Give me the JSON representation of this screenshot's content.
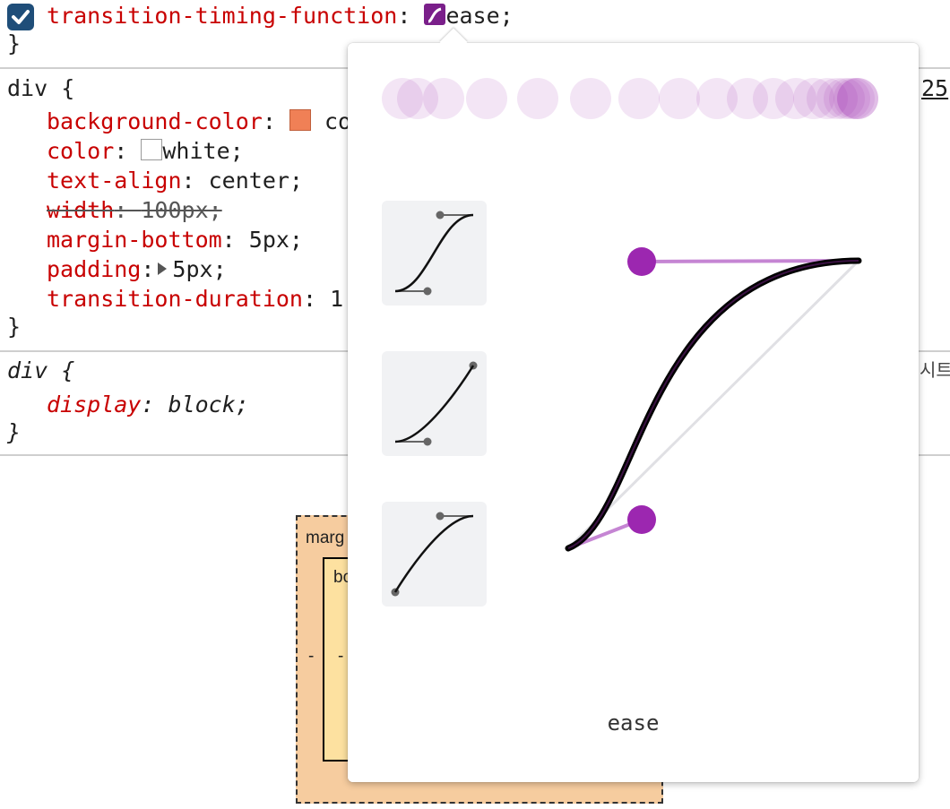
{
  "rule_top": {
    "property": "transition-timing-function",
    "colon": ": ",
    "value": "ease;",
    "closing_brace": "}"
  },
  "rule_div": {
    "selector": "div {",
    "declarations": [
      {
        "prop": "background-color",
        "value": "co"
      },
      {
        "prop": "color",
        "value": "white;"
      },
      {
        "prop": "text-align",
        "value": "center;"
      },
      {
        "prop": "width",
        "value": "100px;"
      },
      {
        "prop": "margin-bottom",
        "value": "5px;"
      },
      {
        "prop": "padding",
        "value": "5px;"
      },
      {
        "prop": "transition-duration",
        "value": "1"
      }
    ],
    "closing_brace": "}",
    "line_number": "25"
  },
  "rule_ua": {
    "selector": "div {",
    "prop": "display",
    "value": "block;",
    "closing_brace": "}",
    "source_label": "시트"
  },
  "box_model": {
    "margin_label": "marg",
    "border_label": "bo",
    "left_margin_value": "-",
    "left_border_value": "-"
  },
  "easing_editor": {
    "selected_preset": "ease",
    "colors": {
      "accent": "#9c27b0",
      "curve": "#000000",
      "preset_bg": "#f1f2f4"
    }
  }
}
